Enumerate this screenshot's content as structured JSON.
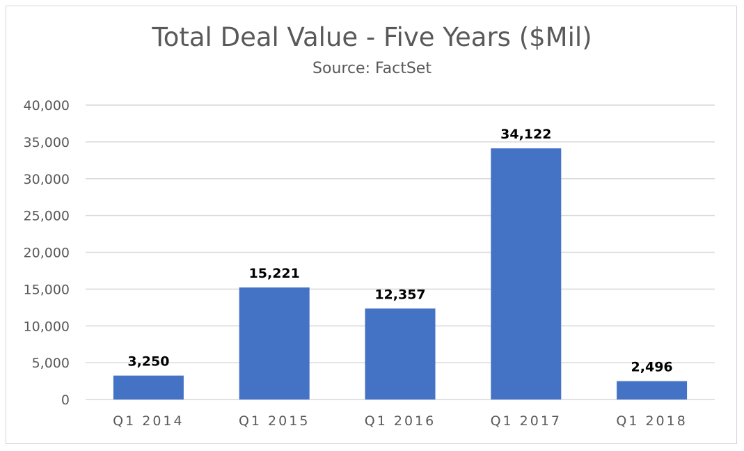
{
  "chart_data": {
    "type": "bar",
    "title": "Total Deal Value - Five Years ($Mil)",
    "subtitle": "Source: FactSet",
    "categories": [
      "Q1 2014",
      "Q1 2015",
      "Q1 2016",
      "Q1 2017",
      "Q1 2018"
    ],
    "values": [
      3250,
      15221,
      12357,
      34122,
      2496
    ],
    "data_labels": [
      "3,250",
      "15,221",
      "12,357",
      "34,122",
      "2,496"
    ],
    "ylim": [
      0,
      40000
    ],
    "yticks": [
      0,
      5000,
      10000,
      15000,
      20000,
      25000,
      30000,
      35000,
      40000
    ],
    "ytick_labels": [
      "0",
      "5,000",
      "10,000",
      "15,000",
      "20,000",
      "25,000",
      "30,000",
      "35,000",
      "40,000"
    ],
    "xlabel": "",
    "ylabel": "",
    "grid": true,
    "legend": "none",
    "bar_color": "#4472c4",
    "grid_color": "#d9d9d9"
  }
}
